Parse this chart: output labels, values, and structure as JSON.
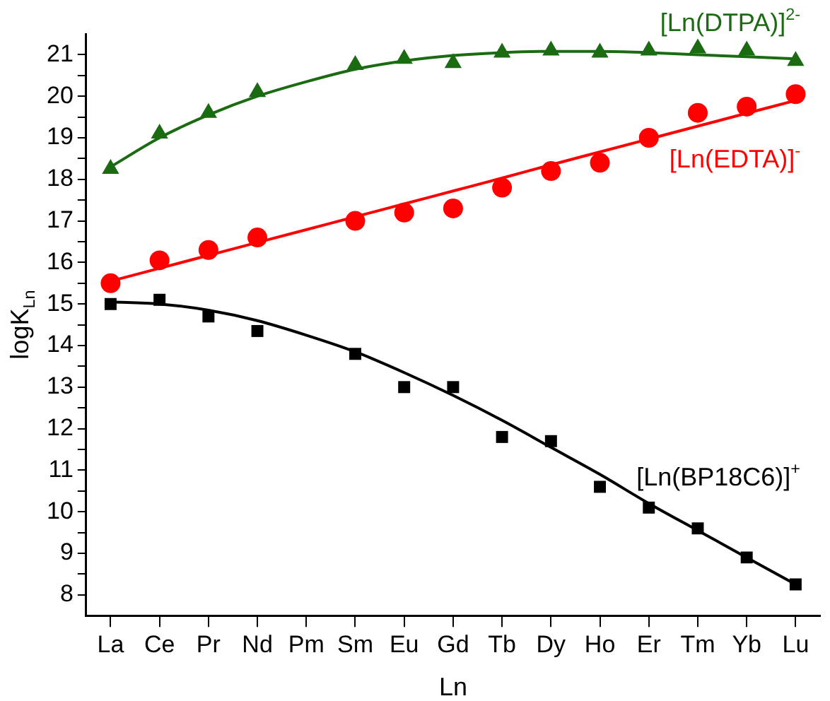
{
  "chart_data": {
    "type": "scatter",
    "xlabel": "Ln",
    "ylabel": "logK$_{Ln}$",
    "categories": [
      "La",
      "Ce",
      "Pr",
      "Nd",
      "Pm",
      "Sm",
      "Eu",
      "Gd",
      "Tb",
      "Dy",
      "Ho",
      "Er",
      "Tm",
      "Yb",
      "Lu"
    ],
    "ylim": [
      7.5,
      21.5
    ],
    "yticks": [
      8,
      {
        "value": 8.5,
        "label": null
      },
      9,
      {
        "value": 9.5,
        "label": null
      },
      10,
      {
        "value": 10.5,
        "label": null
      },
      11,
      {
        "value": 11.5,
        "label": null
      },
      12,
      {
        "value": 12.5,
        "label": null
      },
      13,
      {
        "value": 13.5,
        "label": null
      },
      14,
      {
        "value": 14.5,
        "label": null
      },
      15,
      {
        "value": 15.5,
        "label": null
      },
      16,
      {
        "value": 16.5,
        "label": null
      },
      17,
      {
        "value": 17.5,
        "label": null
      },
      18,
      {
        "value": 18.5,
        "label": null
      },
      19,
      {
        "value": 19.5,
        "label": null
      },
      20,
      {
        "value": 20.5,
        "label": null
      },
      21
    ],
    "series": [
      {
        "type": "line",
        "color": "#1a6b12",
        "marker": "none",
        "line_style": "solid",
        "values": [
          18.3,
          19.0,
          19.55,
          20.0,
          20.35,
          20.65,
          20.85,
          20.98,
          21.05,
          21.08,
          21.08,
          21.05,
          21.0,
          20.95,
          20.9
        ]
      },
      {
        "type": "line",
        "color": "#ff0000",
        "marker": "none",
        "line_style": "solid",
        "values": [
          15.55,
          15.86,
          16.17,
          16.48,
          16.79,
          17.1,
          17.41,
          17.72,
          18.03,
          18.35,
          18.66,
          18.97,
          19.28,
          19.59,
          19.9
        ]
      },
      {
        "type": "line",
        "color": "#000000",
        "marker": "none",
        "line_style": "solid",
        "values": [
          15.05,
          15.0,
          14.85,
          14.6,
          14.25,
          13.85,
          13.35,
          12.8,
          12.2,
          11.55,
          10.9,
          10.2,
          9.55,
          8.9,
          8.25
        ]
      },
      {
        "name": "[Ln(DTPA)]$^{2-}$",
        "color": "#1a6b12",
        "marker": "triangle",
        "values": [
          18.25,
          19.1,
          19.6,
          20.1,
          null,
          20.75,
          20.9,
          20.8,
          21.05,
          21.1,
          21.05,
          21.1,
          21.15,
          21.1,
          20.85
        ]
      },
      {
        "name": "[Ln(EDTA)]$^{-}$",
        "color": "#ff0000",
        "marker": "circle",
        "values": [
          15.5,
          16.05,
          16.3,
          16.6,
          null,
          17.0,
          17.2,
          17.3,
          17.8,
          18.2,
          18.4,
          19.0,
          19.6,
          19.75,
          20.05
        ]
      },
      {
        "name": "[Ln(BP18C6)]$^{+}$",
        "color": "#000000",
        "marker": "square",
        "values": [
          15.0,
          15.1,
          14.7,
          14.35,
          null,
          13.8,
          13.0,
          13.0,
          11.8,
          11.7,
          10.6,
          10.1,
          9.6,
          8.9,
          8.25
        ]
      }
    ]
  }
}
